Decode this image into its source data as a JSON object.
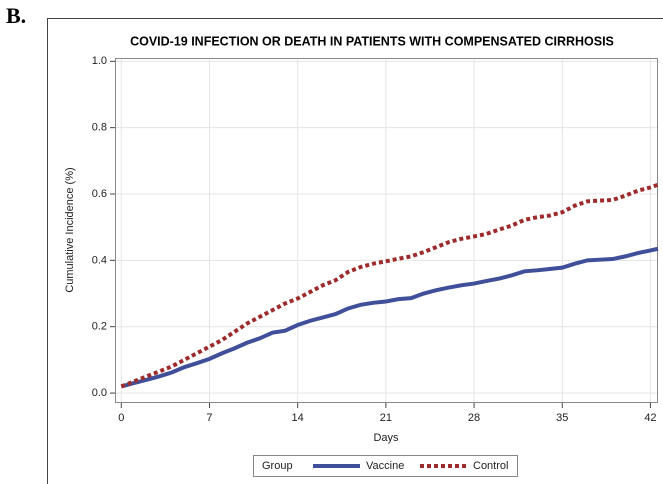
{
  "panel_label": "B.",
  "chart_data": {
    "type": "line",
    "title": "COVID-19 INFECTION OR DEATH IN PATIENTS WITH COMPENSATED CIRRHOSIS",
    "x_label": "Days",
    "y_label": "Cumulative Incidence (%)",
    "x": [
      0,
      1,
      2,
      3,
      4,
      5,
      6,
      7,
      8,
      9,
      10,
      11,
      12,
      13,
      14,
      15,
      16,
      17,
      18,
      19,
      20,
      21,
      22,
      23,
      24,
      25,
      26,
      27,
      28,
      29,
      30,
      31,
      32,
      33,
      34,
      35,
      36,
      37,
      38,
      39,
      40,
      41,
      42,
      42.6
    ],
    "series": [
      {
        "name": "Vaccine",
        "color": "#3f4f9a",
        "line_style": "solid",
        "values": [
          0.02,
          0.03,
          0.04,
          0.05,
          0.062,
          0.078,
          0.09,
          0.103,
          0.12,
          0.135,
          0.152,
          0.165,
          0.182,
          0.188,
          0.205,
          0.218,
          0.228,
          0.238,
          0.255,
          0.266,
          0.272,
          0.276,
          0.283,
          0.286,
          0.3,
          0.31,
          0.318,
          0.325,
          0.33,
          0.338,
          0.345,
          0.355,
          0.367,
          0.37,
          0.374,
          0.378,
          0.39,
          0.4,
          0.402,
          0.404,
          0.412,
          0.422,
          0.43,
          0.435
        ]
      },
      {
        "name": "Control",
        "color": "#9e2b2b",
        "line_style": "dotted",
        "values": [
          0.02,
          0.035,
          0.05,
          0.065,
          0.08,
          0.1,
          0.12,
          0.14,
          0.16,
          0.185,
          0.21,
          0.23,
          0.25,
          0.27,
          0.285,
          0.305,
          0.325,
          0.34,
          0.365,
          0.38,
          0.39,
          0.397,
          0.405,
          0.412,
          0.425,
          0.44,
          0.455,
          0.465,
          0.472,
          0.48,
          0.493,
          0.505,
          0.522,
          0.53,
          0.535,
          0.545,
          0.565,
          0.578,
          0.58,
          0.582,
          0.595,
          0.61,
          0.62,
          0.628
        ]
      }
    ],
    "xlim": [
      -0.5,
      42.6
    ],
    "ylim": [
      -0.03,
      1.01
    ],
    "xticks": [
      0,
      7,
      14,
      21,
      28,
      35,
      42
    ],
    "yticks": [
      {
        "value": 0,
        "label": "0.0"
      },
      0.2,
      0.4,
      0.6,
      0.8,
      {
        "value": 1,
        "label": "1.0"
      }
    ],
    "grid": true,
    "legend_title": "Group",
    "legend_position": "bottom"
  }
}
